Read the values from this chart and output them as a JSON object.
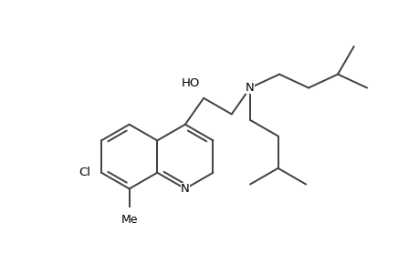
{
  "background_color": "#ffffff",
  "line_color": "#404040",
  "line_width": 1.4,
  "figsize": [
    4.6,
    3.0
  ],
  "dpi": 100,
  "xlim": [
    0,
    9.2
  ],
  "ylim": [
    0,
    6.0
  ]
}
